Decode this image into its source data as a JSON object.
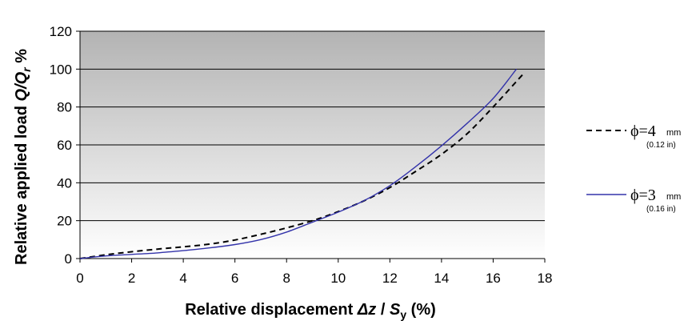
{
  "chart_data": {
    "type": "line",
    "xlabel": {
      "prefix": "Relative displacement ",
      "delta": "Δz",
      "slash": " / ",
      "s": "S",
      "sub": "y",
      "suffix": " (%)"
    },
    "ylabel": {
      "prefix": "Relative applied load ",
      "q": "Q/Q",
      "sub": "r",
      "suffix": "  %"
    },
    "xlim": [
      0,
      18
    ],
    "ylim": [
      0,
      120
    ],
    "xticks": [
      "0",
      "2",
      "4",
      "6",
      "8",
      "10",
      "12",
      "14",
      "16",
      "18"
    ],
    "yticks": [
      "0",
      "20",
      "40",
      "60",
      "80",
      "100",
      "120"
    ],
    "grid": "horizontal",
    "legend_position": "right",
    "series": [
      {
        "name": "ϕ=4",
        "unit": "mm",
        "sub": "(0.12 in)",
        "style": "dashed",
        "color": "#000000",
        "x": [
          0,
          1,
          2,
          3,
          4,
          5,
          6,
          7,
          8,
          9,
          10,
          11,
          12,
          13,
          14,
          15,
          16,
          17.2
        ],
        "y": [
          0,
          2,
          3.6,
          5,
          6.2,
          7.6,
          9.8,
          12.8,
          16.2,
          20,
          24.8,
          30.5,
          37.5,
          46,
          55,
          66,
          80,
          98
        ]
      },
      {
        "name": "ϕ=3",
        "unit": "mm",
        "sub": "(0.16 in)",
        "style": "solid",
        "color": "#3333aa",
        "x": [
          0,
          1,
          2,
          3,
          4,
          5,
          6,
          7,
          8,
          9,
          10,
          11,
          12,
          13,
          14,
          15,
          16,
          16.9
        ],
        "y": [
          0,
          1.4,
          2.2,
          3,
          4.2,
          5.6,
          7.4,
          10,
          14,
          19.2,
          24.5,
          30.6,
          38.5,
          48.5,
          59.5,
          71.5,
          84.5,
          100
        ]
      }
    ]
  }
}
